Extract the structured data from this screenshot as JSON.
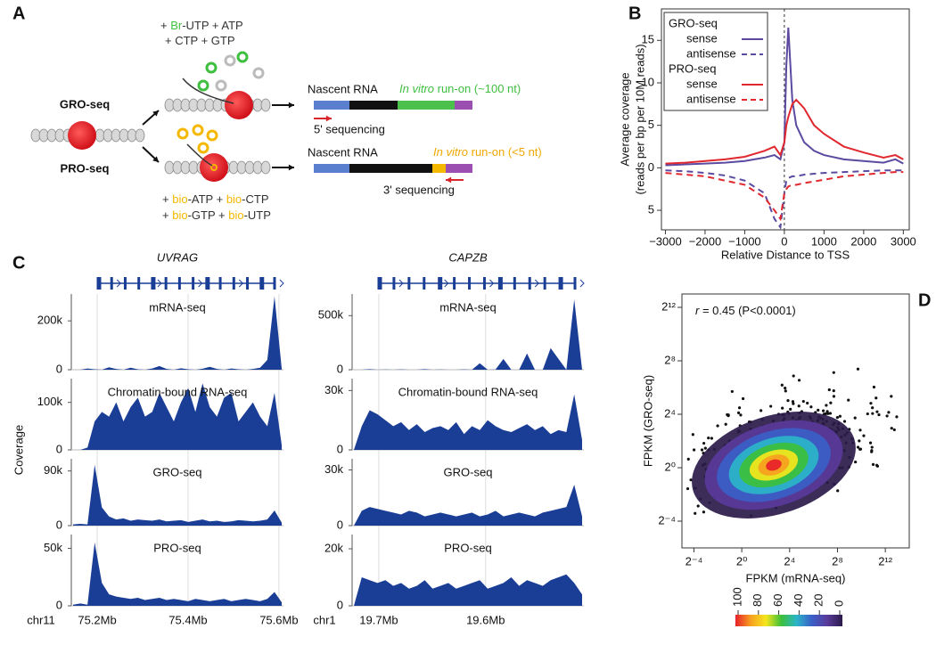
{
  "panel_labels": [
    "A",
    "B",
    "C",
    "D"
  ],
  "panel_a": {
    "gro_label": "GRO-seq",
    "pro_label": "PRO-seq",
    "gro_substrates": [
      [
        "+ ",
        "Br",
        "-UTP + ATP"
      ],
      [
        "+ CTP + GTP"
      ]
    ],
    "pro_substrates": [
      [
        "+ ",
        "bio",
        "-ATP + ",
        "bio",
        "-CTP"
      ],
      [
        "+ ",
        "bio",
        "-GTP + ",
        "bio",
        "-UTP"
      ]
    ],
    "gro_nascent": "Nascent RNA",
    "gro_runon": [
      "In vitro",
      " run-on (~100 nt)"
    ],
    "gro_sequencing": "5' sequencing",
    "pro_nascent": "Nascent RNA",
    "pro_runon": [
      "In vitro",
      " run-on (<5 nt)"
    ],
    "pro_sequencing": "3' sequencing"
  },
  "chart_data": [
    {
      "type": "line",
      "xlabel": "Relative Distance to TSS",
      "ylabel": [
        "Average coverage",
        "(reads per bp per 10M reads)"
      ],
      "xlim": [
        -3100,
        3150
      ],
      "ylim": [
        -7.3,
        18.7
      ],
      "xticks": [
        {
          "value": -3000,
          "label": "−3000"
        },
        {
          "value": -2000,
          "label": "−2000"
        },
        {
          "value": -1000,
          "label": "−1000"
        },
        0,
        1000,
        2000,
        3000
      ],
      "yticks": [
        {
          "value": -5,
          "label": "5"
        },
        0,
        5,
        10,
        15
      ],
      "tss_line": 0,
      "legend_groups": [
        "GRO-seq",
        "PRO-seq"
      ],
      "x": [
        -3000,
        -2500,
        -2000,
        -1500,
        -1000,
        -500,
        -250,
        -100,
        0,
        50,
        100,
        200,
        300,
        500,
        750,
        1000,
        1500,
        2000,
        2500,
        2800,
        3000
      ],
      "series": [
        {
          "name": "sense",
          "group": 0,
          "color": "#5b4aa0",
          "dash": false,
          "values": [
            0.3,
            0.4,
            0.5,
            0.6,
            0.8,
            1.2,
            1.5,
            1.0,
            3,
            12,
            16.5,
            8,
            5,
            3,
            2,
            1.5,
            1,
            0.8,
            0.6,
            1.0,
            0.5
          ]
        },
        {
          "name": "antisense",
          "group": 0,
          "color": "#5b4aa0",
          "dash": true,
          "values": [
            -0.3,
            -0.4,
            -0.6,
            -0.9,
            -1.5,
            -3,
            -6,
            -7,
            -3,
            -1.5,
            -1.2,
            -1,
            -1,
            -0.8,
            -0.7,
            -0.6,
            -0.5,
            -0.4,
            -0.3,
            -0.3,
            -0.3
          ]
        },
        {
          "name": "sense",
          "group": 1,
          "color": "#e0282e",
          "dash": false,
          "values": [
            0.5,
            0.6,
            0.8,
            1.0,
            1.3,
            2,
            2.5,
            1.5,
            3,
            5,
            6,
            7.5,
            8,
            7,
            5,
            4,
            2.5,
            1.8,
            1.2,
            1.5,
            1.0
          ]
        },
        {
          "name": "antisense",
          "group": 1,
          "color": "#e0282e",
          "dash": true,
          "values": [
            -0.6,
            -0.8,
            -1.0,
            -1.5,
            -2,
            -3.5,
            -5,
            -6,
            -3,
            -2.5,
            -2.2,
            -2,
            -2,
            -1.8,
            -1.6,
            -1.4,
            -1.0,
            -0.8,
            -0.6,
            -0.5,
            -0.5
          ]
        }
      ]
    },
    {
      "type": "coverage",
      "ylabel": "Coverage",
      "color": "#1a3e96",
      "genes": [
        {
          "gene": "UVRAG",
          "chrom": "chr11",
          "xlim": [
            75.143,
            75.61
          ],
          "xticks": [
            {
              "value": 75.2,
              "label": "75.2Mb"
            },
            {
              "value": 75.4,
              "label": "75.4Mb"
            },
            {
              "value": 75.6,
              "label": "75.6Mb"
            }
          ],
          "tracks": [
            {
              "name": "mRNA-seq",
              "ylim": [
                0,
                310000
              ],
              "yticks": [
                0,
                {
                  "value": 200000,
                  "label": "200k"
                }
              ],
              "values": [
                0,
                0,
                5000,
                2000,
                0,
                10000,
                3000,
                0,
                8000,
                2000,
                0,
                5000,
                15000,
                3000,
                0,
                6000,
                2000,
                0,
                4000,
                12000,
                3000,
                0,
                5000,
                2000,
                0,
                3000,
                8000,
                40000,
                300000,
                5000
              ]
            },
            {
              "name": "Chromatin-bound RNA-seq",
              "ylim": [
                0,
                150000
              ],
              "yticks": [
                0,
                {
                  "value": 100000,
                  "label": "100k"
                }
              ],
              "values": [
                0,
                0,
                5000,
                60000,
                80000,
                70000,
                100000,
                60000,
                90000,
                110000,
                70000,
                80000,
                120000,
                90000,
                60000,
                100000,
                130000,
                80000,
                140000,
                90000,
                70000,
                110000,
                120000,
                60000,
                80000,
                100000,
                70000,
                50000,
                120000,
                10000
              ]
            },
            {
              "name": "GRO-seq",
              "ylim": [
                0,
                110000
              ],
              "yticks": [
                0,
                {
                  "value": 90000,
                  "label": "90k"
                }
              ],
              "values": [
                2000,
                3000,
                2000,
                100000,
                30000,
                15000,
                10000,
                12000,
                8000,
                10000,
                9000,
                8000,
                10000,
                7000,
                8000,
                9000,
                6000,
                8000,
                10000,
                7000,
                8000,
                6000,
                7000,
                9000,
                8000,
                7000,
                8000,
                10000,
                25000,
                5000
              ]
            },
            {
              "name": "PRO-seq",
              "ylim": [
                0,
                62000
              ],
              "yticks": [
                0,
                {
                  "value": 50000,
                  "label": "50k"
                }
              ],
              "values": [
                1000,
                2000,
                1000,
                55000,
                20000,
                10000,
                8000,
                7000,
                6000,
                7000,
                5000,
                6000,
                7000,
                5000,
                6000,
                5000,
                4000,
                6000,
                5000,
                4000,
                5000,
                6000,
                4000,
                5000,
                6000,
                5000,
                4000,
                6000,
                12000,
                3000
              ]
            }
          ]
        },
        {
          "gene": "CAPZB",
          "chrom": "chr1",
          "xlim": [
            19.725,
            19.508
          ],
          "xticks": [
            {
              "value": 19.7,
              "label": "19.7Mb"
            },
            {
              "value": 19.6,
              "label": "19.6Mb"
            }
          ],
          "tracks": [
            {
              "name": "mRNA-seq",
              "ylim": [
                0,
                700000
              ],
              "yticks": [
                0,
                {
                  "value": 500000,
                  "label": "500k"
                }
              ],
              "values": [
                0,
                0,
                5000,
                0,
                2000,
                0,
                3000,
                0,
                0,
                5000,
                0,
                2000,
                0,
                0,
                3000,
                0,
                60000,
                0,
                2000,
                100000,
                0,
                0,
                150000,
                0,
                0,
                200000,
                100000,
                0,
                650000,
                0
              ]
            },
            {
              "name": "Chromatin-bound RNA-seq",
              "ylim": [
                0,
                36000
              ],
              "yticks": [
                0,
                {
                  "value": 30000,
                  "label": "30k"
                }
              ],
              "values": [
                0,
                12000,
                20000,
                18000,
                15000,
                12000,
                14000,
                10000,
                13000,
                9000,
                11000,
                12000,
                10000,
                14000,
                8000,
                12000,
                10000,
                15000,
                12000,
                10000,
                9000,
                11000,
                13000,
                10000,
                12000,
                8000,
                10000,
                9000,
                28000,
                5000
              ]
            },
            {
              "name": "GRO-seq",
              "ylim": [
                0,
                36000
              ],
              "yticks": [
                0,
                {
                  "value": 30000,
                  "label": "30k"
                }
              ],
              "values": [
                0,
                8000,
                10000,
                9000,
                8000,
                7000,
                6000,
                8000,
                7000,
                5000,
                6000,
                7000,
                6000,
                5000,
                6000,
                7000,
                5000,
                6000,
                8000,
                5000,
                6000,
                7000,
                6000,
                5000,
                7000,
                8000,
                9000,
                10000,
                22000,
                5000
              ]
            },
            {
              "name": "PRO-seq",
              "ylim": [
                0,
                25000
              ],
              "yticks": [
                0,
                {
                  "value": 20000,
                  "label": "20k"
                }
              ],
              "values": [
                0,
                10000,
                9000,
                8000,
                9000,
                7000,
                8000,
                6000,
                7000,
                9000,
                6000,
                7000,
                8000,
                6000,
                7000,
                8000,
                9000,
                6000,
                7000,
                8000,
                10000,
                7000,
                9000,
                8000,
                7000,
                9000,
                10000,
                11000,
                8000,
                4000
              ]
            }
          ]
        }
      ]
    },
    {
      "type": "scatter",
      "xlabel": "FPKM (mRNA-seq)",
      "ylabel": "FPKM (GRO-seq)",
      "annotation": [
        "r",
        " = 0.45 (P<0.0001)"
      ],
      "log_base": 2,
      "xlim": [
        0.03125,
        16384
      ],
      "ylim": [
        0.015625,
        8192
      ],
      "xticks": [
        {
          "value": 0.0625,
          "label": "2⁻⁴"
        },
        {
          "value": 1,
          "label": "2⁰"
        },
        {
          "value": 16,
          "label": "2⁴"
        },
        {
          "value": 256,
          "label": "2⁸"
        },
        {
          "value": 4096,
          "label": "2¹²"
        }
      ],
      "yticks": [
        {
          "value": 0.0625,
          "label": "2⁻⁴"
        },
        {
          "value": 1,
          "label": "2⁰"
        },
        {
          "value": 16,
          "label": "2⁴"
        },
        {
          "value": 256,
          "label": "2⁸"
        },
        {
          "value": 4096,
          "label": "2¹²"
        }
      ],
      "colorbar": {
        "lim": [
          100,
          0
        ],
        "ticks": [
          100,
          80,
          60,
          40,
          20,
          0
        ],
        "colors": [
          "#e8202a",
          "#f7a020",
          "#f5e61e",
          "#3cbf3a",
          "#2bb5c8",
          "#3a5fc8",
          "#5a3a9a",
          "#2a1a4a"
        ]
      }
    }
  ]
}
